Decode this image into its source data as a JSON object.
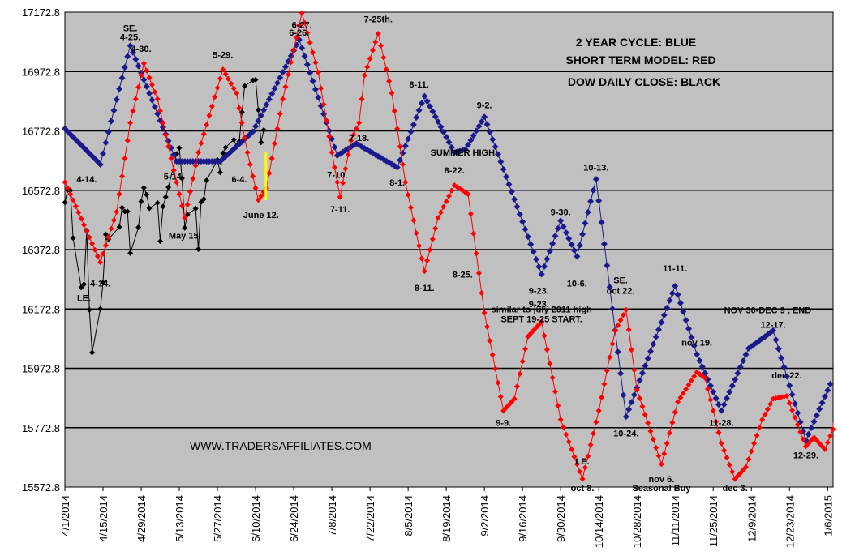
{
  "chart_data": {
    "type": "line",
    "xlim": [
      "2014-04-01",
      "2015-01-08"
    ],
    "ylim": [
      15572.8,
      17172.8
    ],
    "y_ticks": [
      "17172.8",
      "16972.8",
      "16772.8",
      "16572.8",
      "16372.8",
      "16172.8",
      "15972.8",
      "15772.8",
      "15572.8"
    ],
    "x_ticks": [
      "4/1/2014",
      "4/15/2014",
      "4/29/2014",
      "5/13/2014",
      "5/27/2014",
      "6/10/2014",
      "6/24/2014",
      "7/8/2014",
      "7/22/2014",
      "8/5/2014",
      "8/19/2014",
      "9/2/2014",
      "9/16/2014",
      "9/30/2014",
      "10/14/2014",
      "10/28/2014",
      "11/11/2014",
      "11/25/2014",
      "12/9/2014",
      "12/23/2014",
      "1/6/2015"
    ],
    "legend": [
      "2 YEAR CYCLE: BLUE",
      "SHORT TERM MODEL: RED",
      "DOW DAILY CLOSE: BLACK"
    ],
    "watermark": "WWW.TRADERSAFFILIATES.COM",
    "colors": {
      "blue": "#1a1a8c",
      "red": "#ff0000",
      "black": "#000000",
      "plot_bg": "#c0c0c0",
      "highlight": "#ffff00"
    },
    "series": [
      {
        "name": "2 YEAR CYCLE",
        "color": "#1a1a8c",
        "points": [
          [
            "2014-04-01",
            16780
          ],
          [
            "2014-04-14",
            16660
          ],
          [
            "2014-04-25",
            17060
          ],
          [
            "2014-05-12",
            16670
          ],
          [
            "2014-05-28",
            16670
          ],
          [
            "2014-06-09",
            16770
          ],
          [
            "2014-06-26",
            17080
          ],
          [
            "2014-07-10",
            16690
          ],
          [
            "2014-07-17",
            16730
          ],
          [
            "2014-08-01",
            16650
          ],
          [
            "2014-08-11",
            16890
          ],
          [
            "2014-08-22",
            16700
          ],
          [
            "2014-08-26",
            16710
          ],
          [
            "2014-09-02",
            16820
          ],
          [
            "2014-09-23",
            16290
          ],
          [
            "2014-09-30",
            16470
          ],
          [
            "2014-10-06",
            16350
          ],
          [
            "2014-10-13",
            16610
          ],
          [
            "2014-10-24",
            15810
          ],
          [
            "2014-11-11",
            16250
          ],
          [
            "2014-11-19",
            16020
          ],
          [
            "2014-11-28",
            15830
          ],
          [
            "2014-12-08",
            16040
          ],
          [
            "2014-12-17",
            16100
          ],
          [
            "2014-12-29",
            15730
          ],
          [
            "2015-01-07",
            15920
          ]
        ]
      },
      {
        "name": "SHORT TERM MODEL",
        "color": "#ff0000",
        "points": [
          [
            "2014-04-01",
            16600
          ],
          [
            "2014-04-04",
            16540
          ],
          [
            "2014-04-14",
            16330
          ],
          [
            "2014-04-20",
            16500
          ],
          [
            "2014-04-25",
            16800
          ],
          [
            "2014-04-30",
            17000
          ],
          [
            "2014-05-05",
            16880
          ],
          [
            "2014-05-12",
            16600
          ],
          [
            "2014-05-15",
            16480
          ],
          [
            "2014-05-20",
            16700
          ],
          [
            "2014-05-29",
            16980
          ],
          [
            "2014-06-03",
            16900
          ],
          [
            "2014-06-07",
            16700
          ],
          [
            "2014-06-11",
            16540
          ],
          [
            "2014-06-14",
            16580
          ],
          [
            "2014-06-20",
            16880
          ],
          [
            "2014-06-27",
            17170
          ],
          [
            "2014-07-03",
            16970
          ],
          [
            "2014-07-08",
            16700
          ],
          [
            "2014-07-11",
            16550
          ],
          [
            "2014-07-15",
            16740
          ],
          [
            "2014-07-18",
            16800
          ],
          [
            "2014-07-20",
            16960
          ],
          [
            "2014-07-25",
            17100
          ],
          [
            "2014-07-30",
            16900
          ],
          [
            "2014-08-04",
            16600
          ],
          [
            "2014-08-11",
            16300
          ],
          [
            "2014-08-16",
            16480
          ],
          [
            "2014-08-22",
            16590
          ],
          [
            "2014-08-27",
            16560
          ],
          [
            "2014-09-02",
            16160
          ],
          [
            "2014-09-09",
            15830
          ],
          [
            "2014-09-13",
            15870
          ],
          [
            "2014-09-18",
            16080
          ],
          [
            "2014-09-23",
            16130
          ],
          [
            "2014-09-30",
            15800
          ],
          [
            "2014-10-08",
            15600
          ],
          [
            "2014-10-14",
            15830
          ],
          [
            "2014-10-20",
            16100
          ],
          [
            "2014-10-24",
            16170
          ],
          [
            "2014-10-28",
            15900
          ],
          [
            "2014-11-06",
            15650
          ],
          [
            "2014-11-12",
            15860
          ],
          [
            "2014-11-19",
            15960
          ],
          [
            "2014-11-22",
            15940
          ],
          [
            "2014-11-28",
            15720
          ],
          [
            "2014-12-03",
            15600
          ],
          [
            "2014-12-07",
            15640
          ],
          [
            "2014-12-13",
            15800
          ],
          [
            "2014-12-17",
            15870
          ],
          [
            "2014-12-22",
            15880
          ],
          [
            "2014-12-29",
            15710
          ],
          [
            "2015-01-01",
            15740
          ],
          [
            "2015-01-05",
            15700
          ],
          [
            "2015-01-09",
            15790
          ]
        ]
      },
      {
        "name": "DOW DAILY CLOSE",
        "color": "#000000",
        "points": [
          [
            "2014-04-01",
            16532
          ],
          [
            "2014-04-02",
            16573
          ],
          [
            "2014-04-03",
            16572
          ],
          [
            "2014-04-04",
            16412
          ],
          [
            "2014-04-07",
            16245
          ],
          [
            "2014-04-08",
            16256
          ],
          [
            "2014-04-09",
            16437
          ],
          [
            "2014-04-10",
            16170
          ],
          [
            "2014-04-11",
            16026
          ],
          [
            "2014-04-14",
            16173
          ],
          [
            "2014-04-15",
            16262
          ],
          [
            "2014-04-16",
            16424
          ],
          [
            "2014-04-17",
            16408
          ],
          [
            "2014-04-21",
            16449
          ],
          [
            "2014-04-22",
            16514
          ],
          [
            "2014-04-23",
            16501
          ],
          [
            "2014-04-24",
            16501
          ],
          [
            "2014-04-25",
            16361
          ],
          [
            "2014-04-28",
            16448
          ],
          [
            "2014-04-29",
            16535
          ],
          [
            "2014-04-30",
            16581
          ],
          [
            "2014-05-01",
            16558
          ],
          [
            "2014-05-02",
            16512
          ],
          [
            "2014-05-05",
            16530
          ],
          [
            "2014-05-06",
            16401
          ],
          [
            "2014-05-07",
            16518
          ],
          [
            "2014-05-08",
            16550
          ],
          [
            "2014-05-09",
            16583
          ],
          [
            "2014-05-12",
            16695
          ],
          [
            "2014-05-13",
            16715
          ],
          [
            "2014-05-14",
            16613
          ],
          [
            "2014-05-15",
            16446
          ],
          [
            "2014-05-16",
            16491
          ],
          [
            "2014-05-19",
            16511
          ],
          [
            "2014-05-20",
            16374
          ],
          [
            "2014-05-21",
            16533
          ],
          [
            "2014-05-22",
            16543
          ],
          [
            "2014-05-23",
            16606
          ],
          [
            "2014-05-27",
            16675
          ],
          [
            "2014-05-28",
            16633
          ],
          [
            "2014-05-29",
            16698
          ],
          [
            "2014-05-30",
            16717
          ],
          [
            "2014-06-02",
            16743
          ],
          [
            "2014-06-03",
            16722
          ],
          [
            "2014-06-04",
            16737
          ],
          [
            "2014-06-05",
            16836
          ],
          [
            "2014-06-06",
            16924
          ],
          [
            "2014-06-09",
            16943
          ],
          [
            "2014-06-10",
            16945
          ],
          [
            "2014-06-11",
            16843
          ],
          [
            "2014-06-12",
            16734
          ],
          [
            "2014-06-13",
            16776
          ]
        ]
      }
    ],
    "annotations": [
      {
        "text": "SE.",
        "date": "2014-04-25",
        "value": 17120
      },
      {
        "text": "4-25.",
        "date": "2014-04-25",
        "value": 17090
      },
      {
        "text": "4-30.",
        "date": "2014-04-29",
        "value": 17050
      },
      {
        "text": "5-29.",
        "date": "2014-05-29",
        "value": 17030
      },
      {
        "text": "6-27.",
        "date": "2014-06-27",
        "value": 17130
      },
      {
        "text": "6-26.",
        "date": "2014-06-26",
        "value": 17105
      },
      {
        "text": "7-25th.",
        "date": "2014-07-25",
        "value": 17150
      },
      {
        "text": "8-11.",
        "date": "2014-08-09",
        "value": 16930
      },
      {
        "text": "9-2.",
        "date": "2014-09-02",
        "value": 16860
      },
      {
        "text": "7-18.",
        "date": "2014-07-18",
        "value": 16750
      },
      {
        "text": "SUMMER HIGH",
        "date": "2014-08-25",
        "value": 16700
      },
      {
        "text": "4-14.",
        "date": "2014-04-09",
        "value": 16610
      },
      {
        "text": "5-14.",
        "date": "2014-05-11",
        "value": 16620
      },
      {
        "text": "6-4.",
        "date": "2014-06-04",
        "value": 16610
      },
      {
        "text": "7-10.",
        "date": "2014-07-10",
        "value": 16625
      },
      {
        "text": "8-1.",
        "date": "2014-08-01",
        "value": 16600
      },
      {
        "text": "8-22.",
        "date": "2014-08-22",
        "value": 16640
      },
      {
        "text": "10-13.",
        "date": "2014-10-13",
        "value": 16650
      },
      {
        "text": "June 12.",
        "date": "2014-06-12",
        "value": 16490
      },
      {
        "text": "7-11.",
        "date": "2014-07-11",
        "value": 16510
      },
      {
        "text": "9-30.",
        "date": "2014-09-30",
        "value": 16500
      },
      {
        "text": "May 15.",
        "date": "2014-05-15",
        "value": 16420
      },
      {
        "text": "4-14.",
        "date": "2014-04-14",
        "value": 16260
      },
      {
        "text": "LE.",
        "date": "2014-04-08",
        "value": 16210
      },
      {
        "text": "8-25.",
        "date": "2014-08-25",
        "value": 16290
      },
      {
        "text": "11-11.",
        "date": "2014-11-11",
        "value": 16310
      },
      {
        "text": "10-6.",
        "date": "2014-10-06",
        "value": 16260
      },
      {
        "text": "SE.",
        "date": "2014-10-22",
        "value": 16270
      },
      {
        "text": "oct 22.",
        "date": "2014-10-22",
        "value": 16235
      },
      {
        "text": "8-11.",
        "date": "2014-08-11",
        "value": 16245
      },
      {
        "text": "9-23.",
        "date": "2014-09-22",
        "value": 16235
      },
      {
        "text": "9-23.",
        "date": "2014-09-22",
        "value": 16190
      },
      {
        "text": "similar to july 2011 high",
        "date": "2014-09-23",
        "value": 16172
      },
      {
        "text": "NOV 30-DEC 9 , END",
        "date": "2014-12-15",
        "value": 16170
      },
      {
        "text": "SEPT 19-25 START.",
        "date": "2014-09-23",
        "value": 16140
      },
      {
        "text": "12-17.",
        "date": "2014-12-17",
        "value": 16120
      },
      {
        "text": "nov 19.",
        "date": "2014-11-19",
        "value": 16060
      },
      {
        "text": "dec 22.",
        "date": "2014-12-22",
        "value": 15950
      },
      {
        "text": "9-9.",
        "date": "2014-09-09",
        "value": 15790
      },
      {
        "text": "11-28.",
        "date": "2014-11-28",
        "value": 15790
      },
      {
        "text": "10-24.",
        "date": "2014-10-24",
        "value": 15755
      },
      {
        "text": "12-29.",
        "date": "2014-12-29",
        "value": 15680
      },
      {
        "text": "LE.",
        "date": "2014-10-08",
        "value": 15660
      },
      {
        "text": "oct 8.",
        "date": "2014-10-08",
        "value": 15570
      },
      {
        "text": "nov 6.",
        "date": "2014-11-06",
        "value": 15600
      },
      {
        "text": "Seasonal Buy",
        "date": "2014-11-06",
        "value": 15570
      },
      {
        "text": "dec 3.",
        "date": "2014-12-03",
        "value": 15570
      }
    ],
    "highlight_bar": {
      "date": "2014-06-12",
      "from": 16540,
      "to": 16700
    }
  }
}
